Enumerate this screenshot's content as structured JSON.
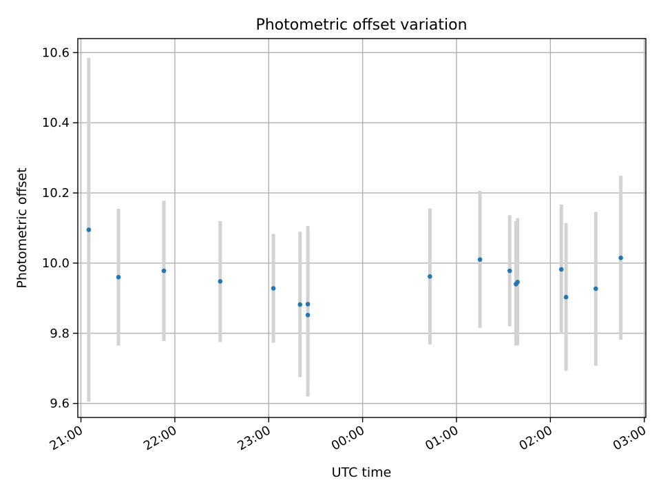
{
  "chart_data": {
    "type": "scatter",
    "title": "Photometric offset variation",
    "xlabel": "UTC time",
    "ylabel": "Photometric offset",
    "x_tick_labels": [
      "21:00",
      "22:00",
      "23:00",
      "00:00",
      "01:00",
      "02:00",
      "03:00"
    ],
    "y_tick_labels": [
      "9.6",
      "9.8",
      "10.0",
      "10.2",
      "10.4",
      "10.6"
    ],
    "y_ticks": [
      9.6,
      9.8,
      10.0,
      10.2,
      10.4,
      10.6
    ],
    "xlim": [
      "20:58",
      "03:01"
    ],
    "ylim": [
      9.56,
      10.64
    ],
    "grid": true,
    "colors": {
      "points": "#1f77b4",
      "error_bars": "#d3d3d3",
      "grid": "#b0b0b0"
    },
    "points": [
      {
        "time": "21:05",
        "y": 10.095,
        "ylow": 9.605,
        "yhigh": 10.585
      },
      {
        "time": "21:24",
        "y": 9.96,
        "ylow": 9.765,
        "yhigh": 10.155
      },
      {
        "time": "21:53",
        "y": 9.978,
        "ylow": 9.778,
        "yhigh": 10.178
      },
      {
        "time": "22:29",
        "y": 9.948,
        "ylow": 9.775,
        "yhigh": 10.12
      },
      {
        "time": "23:03",
        "y": 9.928,
        "ylow": 9.773,
        "yhigh": 10.083
      },
      {
        "time": "23:20",
        "y": 9.882,
        "ylow": 9.675,
        "yhigh": 10.09
      },
      {
        "time": "23:25",
        "y": 9.883,
        "ylow": 9.66,
        "yhigh": 10.106
      },
      {
        "time": "23:25",
        "y": 9.852,
        "ylow": 9.62,
        "yhigh": 10.09
      },
      {
        "time": "00:43",
        "y": 9.962,
        "ylow": 9.768,
        "yhigh": 10.156
      },
      {
        "time": "01:15",
        "y": 10.01,
        "ylow": 9.815,
        "yhigh": 10.206
      },
      {
        "time": "01:34",
        "y": 9.978,
        "ylow": 9.82,
        "yhigh": 10.137
      },
      {
        "time": "01:38",
        "y": 9.94,
        "ylow": 9.765,
        "yhigh": 10.12
      },
      {
        "time": "01:39",
        "y": 9.946,
        "ylow": 9.766,
        "yhigh": 10.128
      },
      {
        "time": "02:07",
        "y": 9.982,
        "ylow": 9.798,
        "yhigh": 10.167
      },
      {
        "time": "02:10",
        "y": 9.903,
        "ylow": 9.693,
        "yhigh": 10.114
      },
      {
        "time": "02:29",
        "y": 9.927,
        "ylow": 9.707,
        "yhigh": 10.146
      },
      {
        "time": "02:45",
        "y": 10.015,
        "ylow": 9.782,
        "yhigh": 10.249
      }
    ]
  }
}
